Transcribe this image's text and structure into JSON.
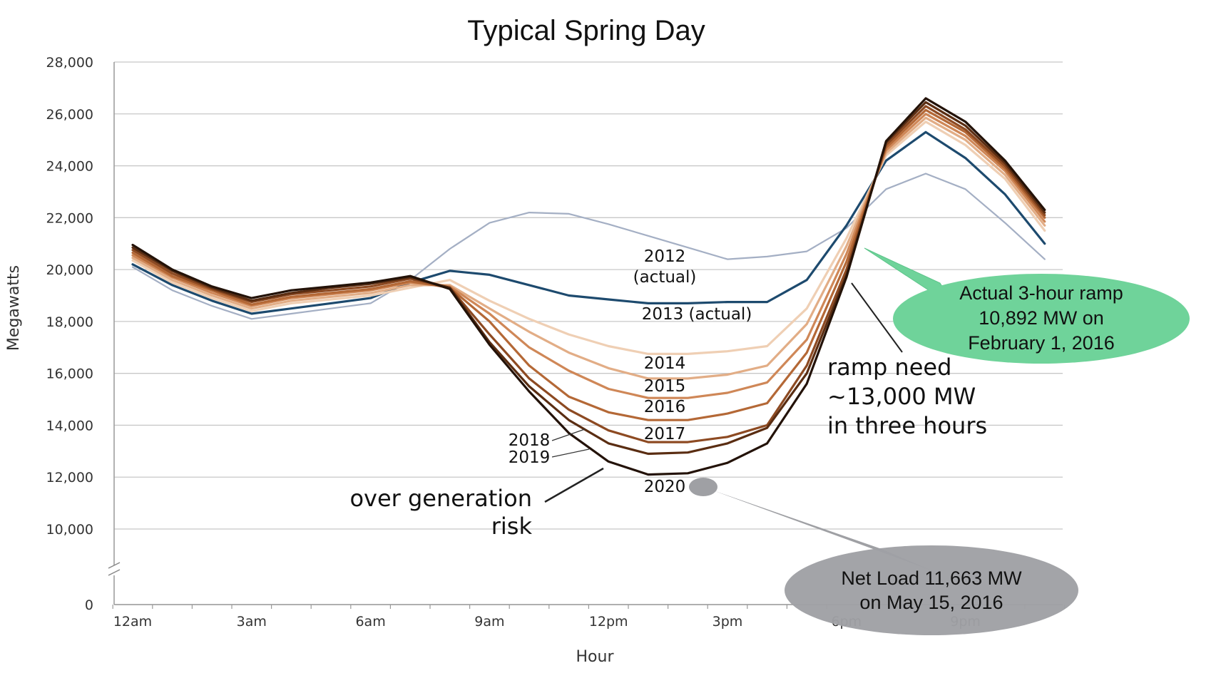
{
  "chart_data": {
    "type": "line",
    "title": "Typical Spring Day",
    "xlabel": "Hour",
    "ylabel": "Megawatts",
    "ylim": [
      0,
      28000
    ],
    "y_axis_break": [
      10000,
      0
    ],
    "yticks": [
      {
        "value": 28000,
        "label": "28,000"
      },
      {
        "value": 26000,
        "label": "26,000"
      },
      {
        "value": 24000,
        "label": "24,000"
      },
      {
        "value": 22000,
        "label": "22,000"
      },
      {
        "value": 20000,
        "label": "20,000"
      },
      {
        "value": 18000,
        "label": "18,000"
      },
      {
        "value": 16000,
        "label": "16,000"
      },
      {
        "value": 14000,
        "label": "14,000"
      },
      {
        "value": 12000,
        "label": "12,000"
      },
      {
        "value": 10000,
        "label": "10,000"
      },
      {
        "value": 0,
        "label": "0"
      }
    ],
    "xticks": [
      {
        "hour": 0,
        "label": "12am"
      },
      {
        "hour": 3,
        "label": "3am"
      },
      {
        "hour": 6,
        "label": "6am"
      },
      {
        "hour": 9,
        "label": "9am"
      },
      {
        "hour": 12,
        "label": "12pm"
      },
      {
        "hour": 15,
        "label": "3pm"
      },
      {
        "hour": 18,
        "label": "6pm"
      },
      {
        "hour": 21,
        "label": "9pm"
      }
    ],
    "x": [
      0,
      1,
      2,
      3,
      4,
      5,
      6,
      7,
      8,
      9,
      10,
      11,
      12,
      13,
      14,
      15,
      16,
      17,
      18,
      19,
      20,
      21,
      22,
      23
    ],
    "grid": true,
    "series": [
      {
        "name": "2012 (actual)",
        "color": "#a4afc4",
        "values": [
          20100,
          19200,
          18600,
          18100,
          18300,
          18500,
          18700,
          19600,
          20800,
          21800,
          22200,
          22150,
          21750,
          21300,
          20850,
          20400,
          20500,
          20700,
          21600,
          23100,
          23700,
          23100,
          21800,
          20400
        ]
      },
      {
        "name": "2013 (actual)",
        "color": "#1d4a6e",
        "values": [
          20200,
          19400,
          18800,
          18300,
          18500,
          18700,
          18900,
          19500,
          19950,
          19800,
          19400,
          19000,
          18850,
          18700,
          18700,
          18750,
          18750,
          19600,
          21700,
          24200,
          25300,
          24300,
          22900,
          21000
        ]
      },
      {
        "name": "2014",
        "color": "#efcfb4",
        "values": [
          20350,
          19500,
          18900,
          18400,
          18700,
          18850,
          19000,
          19300,
          19600,
          18800,
          18100,
          17500,
          17050,
          16750,
          16750,
          16850,
          17050,
          18500,
          21200,
          24400,
          25700,
          24800,
          23500,
          21500
        ]
      },
      {
        "name": "2015",
        "color": "#e2ad86",
        "values": [
          20450,
          19600,
          19000,
          18500,
          18800,
          18950,
          19100,
          19400,
          19400,
          18500,
          17600,
          16800,
          16200,
          15800,
          15800,
          15950,
          16300,
          17900,
          20900,
          24500,
          25850,
          25000,
          23650,
          21700
        ]
      },
      {
        "name": "2016",
        "color": "#cf8757",
        "values": [
          20550,
          19700,
          19100,
          18600,
          18900,
          19050,
          19200,
          19500,
          19350,
          18300,
          17000,
          16100,
          15400,
          15050,
          15050,
          15250,
          15650,
          17300,
          20600,
          24600,
          26000,
          25150,
          23800,
          21850
        ]
      },
      {
        "name": "2017",
        "color": "#b46836",
        "values": [
          20650,
          19750,
          19200,
          18650,
          18950,
          19100,
          19250,
          19550,
          19300,
          18000,
          16300,
          15100,
          14500,
          14200,
          14200,
          14450,
          14850,
          16800,
          20300,
          24700,
          26150,
          25300,
          23900,
          22000
        ]
      },
      {
        "name": "2018",
        "color": "#8d4a22",
        "values": [
          20750,
          19850,
          19250,
          18750,
          19050,
          19200,
          19350,
          19650,
          19300,
          17500,
          15800,
          14600,
          13800,
          13350,
          13350,
          13550,
          14000,
          16300,
          20000,
          24800,
          26300,
          25400,
          24000,
          22100
        ]
      },
      {
        "name": "2019",
        "color": "#5a2d12",
        "values": [
          20850,
          19950,
          19300,
          18800,
          19100,
          19300,
          19450,
          19700,
          19300,
          17200,
          15500,
          14200,
          13300,
          12900,
          12950,
          13300,
          13900,
          16000,
          19800,
          24900,
          26450,
          25550,
          24100,
          22200
        ]
      },
      {
        "name": "2020",
        "color": "#231208",
        "values": [
          20950,
          20000,
          19350,
          18900,
          19200,
          19350,
          19500,
          19750,
          19250,
          17100,
          15300,
          13700,
          12600,
          12100,
          12150,
          12550,
          13300,
          15600,
          19700,
          24950,
          26600,
          25700,
          24200,
          22300
        ]
      }
    ],
    "annotations": [
      {
        "id": "ramp",
        "text_lines": [
          "ramp need",
          "~13,000 MW",
          "in three hours"
        ]
      },
      {
        "id": "overgen",
        "text_lines": [
          "over generation",
          "risk"
        ]
      },
      {
        "id": "callout_ramp",
        "text_lines": [
          "Actual 3-hour ramp",
          "10,892 MW on",
          "February 1, 2016"
        ],
        "color": "#6fd39a"
      },
      {
        "id": "callout_netload",
        "text_lines": [
          "Net Load 11,663 MW",
          "on May 15, 2016"
        ],
        "color": "#9fa0a4"
      }
    ]
  }
}
